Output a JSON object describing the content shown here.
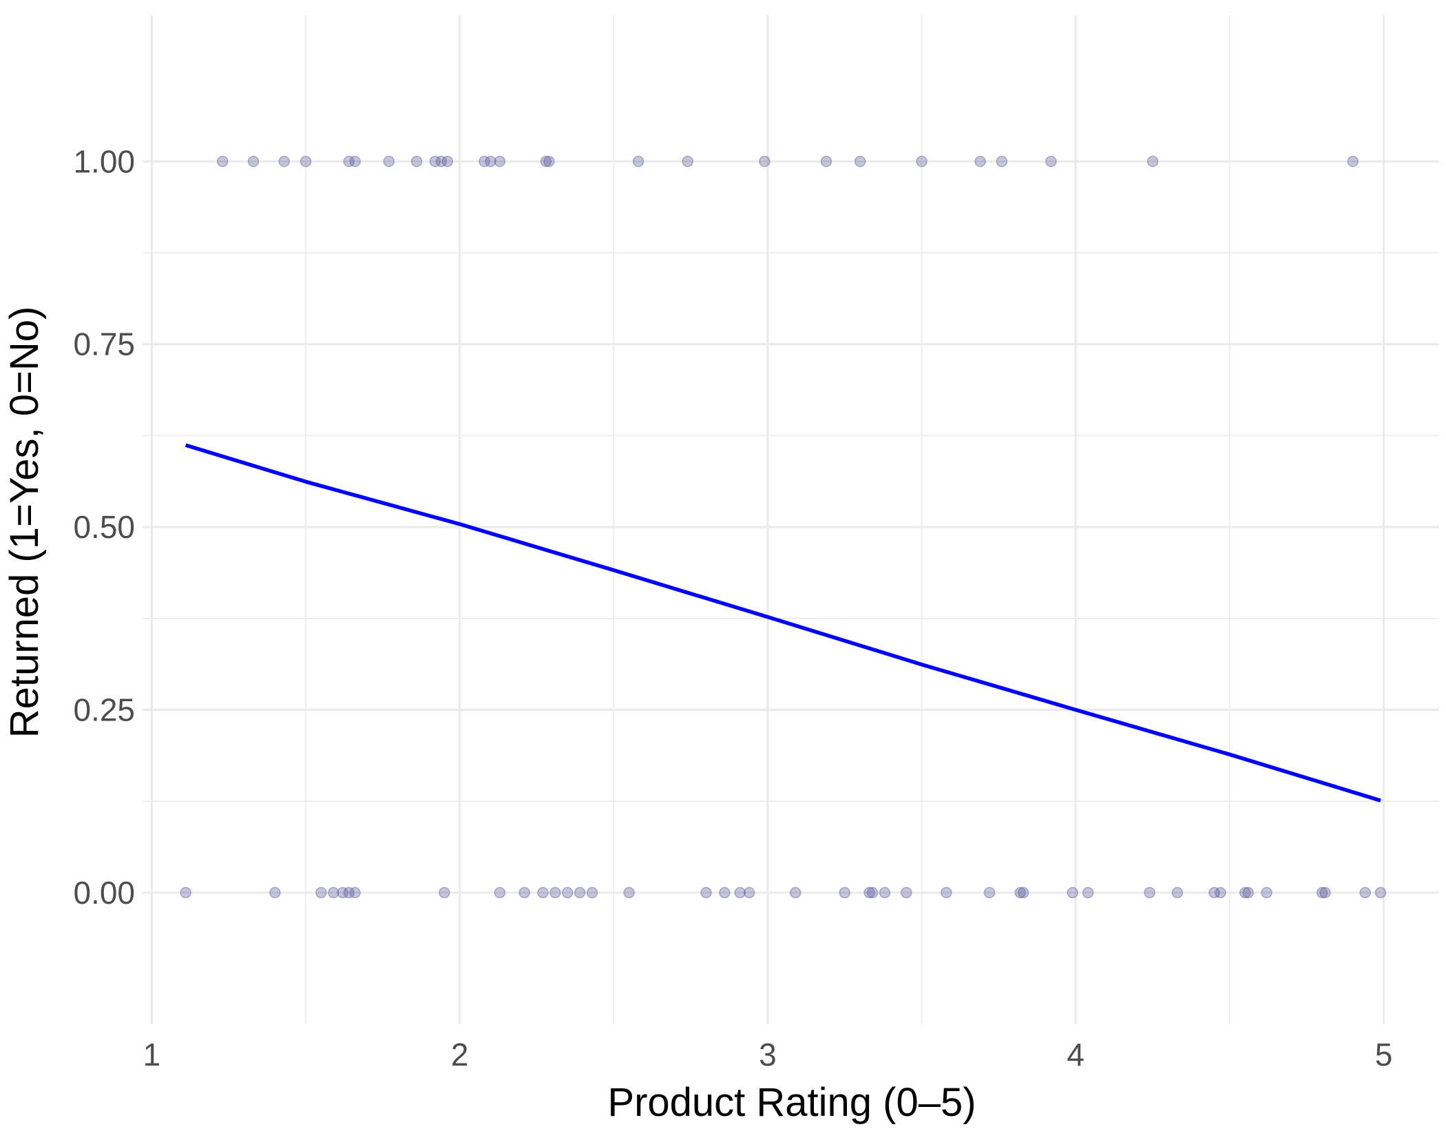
{
  "chart_data": {
    "type": "scatter",
    "title": "",
    "xlabel": "Product Rating (0–5)",
    "ylabel": "Returned (1=Yes, 0=No)",
    "xlim": [
      0.97,
      5.18
    ],
    "ylim": [
      -0.18,
      1.2
    ],
    "x_ticks": [
      1,
      2,
      3,
      4,
      5
    ],
    "x_tick_labels": [
      "1",
      "2",
      "3",
      "4",
      "5"
    ],
    "y_ticks": [
      0,
      0.25,
      0.5,
      0.75,
      1
    ],
    "y_tick_labels": [
      "0.00",
      "0.25",
      "0.50",
      "0.75",
      "1.00"
    ],
    "x_minor_ticks": [
      1.5,
      2.5,
      3.5,
      4.5
    ],
    "y_minor_ticks": [
      0.125,
      0.375,
      0.625,
      0.875
    ],
    "grid": true,
    "legend": "none",
    "colors": {
      "points": "#5a5a9c",
      "fit_line": "#0000ff",
      "grid": "#ebebeb"
    },
    "series": [
      {
        "kind": "points",
        "x": [
          1.23,
          1.33,
          1.43,
          1.5,
          1.64,
          1.66,
          1.77,
          1.86,
          1.92,
          1.94,
          1.96,
          2.08,
          2.1,
          2.13,
          2.28,
          2.29,
          2.58,
          2.74,
          2.99,
          3.19,
          3.3,
          3.5,
          3.69,
          3.76,
          3.92,
          4.25,
          4.9,
          1.11,
          1.4,
          1.55,
          1.59,
          1.62,
          1.64,
          1.66,
          1.95,
          2.13,
          2.21,
          2.27,
          2.31,
          2.35,
          2.39,
          2.43,
          2.55,
          2.8,
          2.86,
          2.91,
          2.94,
          3.09,
          3.25,
          3.33,
          3.34,
          3.38,
          3.45,
          3.58,
          3.72,
          3.82,
          3.83,
          3.99,
          4.04,
          4.24,
          4.33,
          4.45,
          4.47,
          4.55,
          4.56,
          4.62,
          4.8,
          4.81,
          4.94,
          4.99
        ],
        "y": [
          1,
          1,
          1,
          1,
          1,
          1,
          1,
          1,
          1,
          1,
          1,
          1,
          1,
          1,
          1,
          1,
          1,
          1,
          1,
          1,
          1,
          1,
          1,
          1,
          1,
          1,
          1,
          0,
          0,
          0,
          0,
          0,
          0,
          0,
          0,
          0,
          0,
          0,
          0,
          0,
          0,
          0,
          0,
          0,
          0,
          0,
          0,
          0,
          0,
          0,
          0,
          0,
          0,
          0,
          0,
          0,
          0,
          0,
          0,
          0,
          0,
          0,
          0,
          0,
          0,
          0,
          0,
          0,
          0,
          0
        ]
      },
      {
        "kind": "line",
        "x": [
          1.11,
          1.5,
          2.0,
          2.5,
          3.0,
          3.5,
          4.0,
          4.5,
          4.99
        ],
        "y": [
          0.612,
          0.562,
          0.504,
          0.441,
          0.377,
          0.312,
          0.25,
          0.189,
          0.126
        ]
      }
    ]
  }
}
